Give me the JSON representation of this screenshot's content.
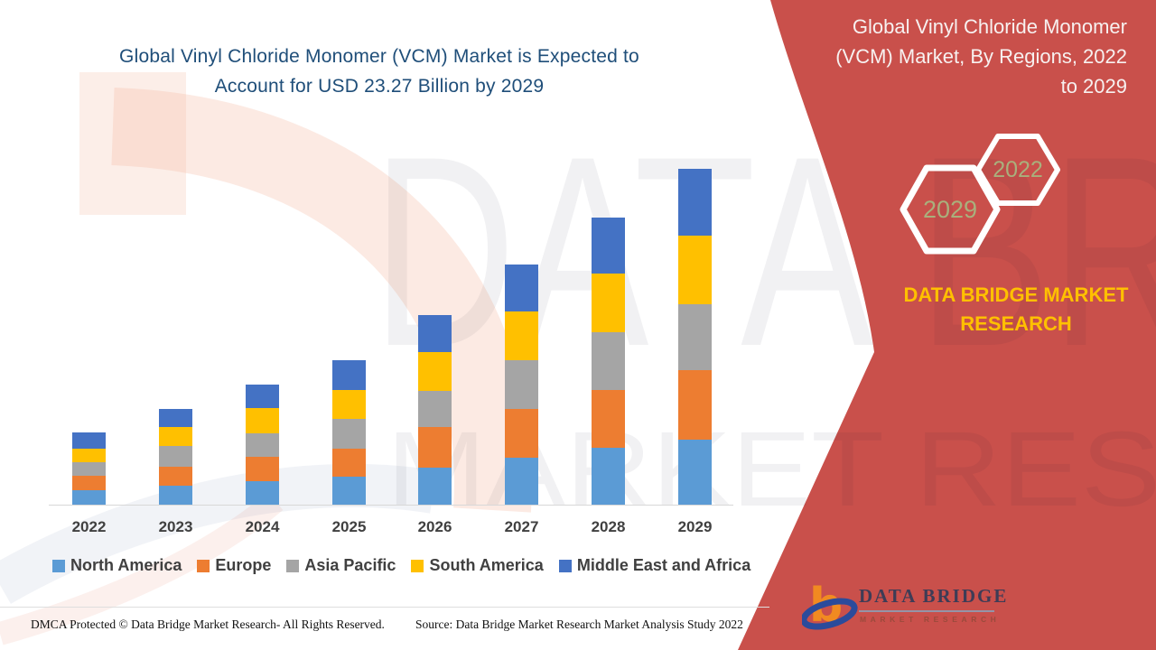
{
  "page": {
    "title_left": {
      "line1": "Global Vinyl Chloride Monomer (VCM) Market is Expected to",
      "line2": "Account for USD 23.27 Billion by 2029"
    },
    "right_panel": {
      "title_lines": [
        "Global Vinyl Chloride Monomer",
        "(VCM) Market, By Regions, 2022",
        "to 2029"
      ],
      "hexagon_large_label": "2029",
      "hexagon_small_label": "2022",
      "brand_text": "DATA BRIDGE MARKET RESEARCH",
      "colors": {
        "background": "#C9504B",
        "brand_text": "#FFC000",
        "hexagon_border": "#FFFFFF",
        "hexagon_text": "#A9B07C"
      }
    },
    "logo": {
      "name": "DATA BRIDGE",
      "subtitle": "MARKET RESEARCH"
    },
    "watermark": {
      "line1": "DATA BRIDGE",
      "line2": "MARKET RESEARCH"
    },
    "footer": {
      "left": "DMCA Protected © Data Bridge Market Research- All Rights Reserved.",
      "source": "Source: Data Bridge Market Research Market Analysis Study 2022"
    }
  },
  "chart_data": {
    "type": "bar",
    "stacked": true,
    "title": "Global Vinyl Chloride Monomer (VCM) Market is Expected to Account for USD 23.27 Billion by 2029",
    "unit": "USD Billion",
    "categories": [
      "2022",
      "2023",
      "2024",
      "2025",
      "2026",
      "2027",
      "2028",
      "2029"
    ],
    "series": [
      {
        "name": "North America",
        "color": "#5B9BD5",
        "values": [
          1.0,
          1.3,
          1.6,
          1.95,
          2.55,
          3.25,
          3.95,
          4.5
        ]
      },
      {
        "name": "Europe",
        "color": "#ED7D31",
        "values": [
          1.0,
          1.35,
          1.7,
          1.95,
          2.85,
          3.4,
          4.0,
          4.8
        ]
      },
      {
        "name": "Asia Pacific",
        "color": "#A5A5A5",
        "values": [
          0.95,
          1.4,
          1.65,
          2.05,
          2.45,
          3.35,
          4.0,
          4.6
        ]
      },
      {
        "name": "South America",
        "color": "#FFC000",
        "values": [
          0.95,
          1.3,
          1.75,
          2.0,
          2.7,
          3.4,
          4.05,
          4.7
        ]
      },
      {
        "name": "Middle East and Africa",
        "color": "#4472C4",
        "values": [
          1.1,
          1.3,
          1.6,
          2.05,
          2.6,
          3.2,
          3.9,
          4.67
        ]
      }
    ],
    "totals": [
      5.0,
      6.65,
      8.3,
      10.0,
      13.15,
      16.6,
      19.9,
      23.27
    ],
    "ylim": [
      0,
      24
    ],
    "grid": false,
    "y_axis_visible": false,
    "legend_position": "bottom"
  }
}
